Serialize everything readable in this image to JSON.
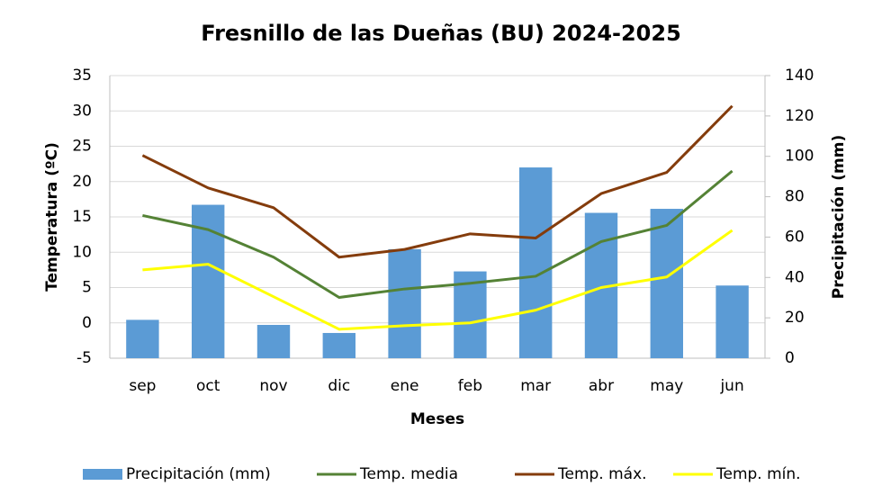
{
  "chart_data": {
    "type": "combo",
    "title": "Fresnillo de las Dueñas (BU)  2024-2025",
    "x_label": "Meses",
    "y_label": "Temperatura (ºC)",
    "y2_label": "Precipitación (mm)",
    "categories": [
      "sep",
      "oct",
      "nov",
      "dic",
      "ene",
      "feb",
      "mar",
      "abr",
      "may",
      "jun"
    ],
    "series": [
      {
        "name": "Precipitación (mm)",
        "type": "bar",
        "axis": "y2",
        "color": "#5b9bd5",
        "values": [
          19,
          76,
          16.5,
          12.5,
          54,
          43,
          94.5,
          72,
          74,
          36
        ]
      },
      {
        "name": "Temp. media",
        "type": "line",
        "color": "#548235",
        "values": [
          15.2,
          13.2,
          9.3,
          3.6,
          4.8,
          5.6,
          6.6,
          11.5,
          13.8,
          21.5
        ]
      },
      {
        "name": "Temp. máx.",
        "type": "line",
        "color": "#843c0c",
        "values": [
          23.7,
          19.1,
          16.3,
          9.3,
          10.4,
          12.6,
          12.0,
          18.3,
          21.3,
          30.7
        ]
      },
      {
        "name": "Temp. mín.",
        "type": "line",
        "color": "#ffff00",
        "values": [
          7.5,
          8.3,
          3.7,
          -0.9,
          -0.4,
          0,
          1.8,
          5.0,
          6.5,
          13.1
        ]
      }
    ],
    "ylim": [
      -5,
      35
    ],
    "yticks": [
      -5,
      0,
      5,
      10,
      15,
      20,
      25,
      30,
      35
    ],
    "y2lim": [
      0,
      140
    ],
    "y2ticks": [
      0,
      20,
      40,
      60,
      80,
      100,
      120,
      140
    ],
    "grid": true,
    "legend": "bottom"
  }
}
